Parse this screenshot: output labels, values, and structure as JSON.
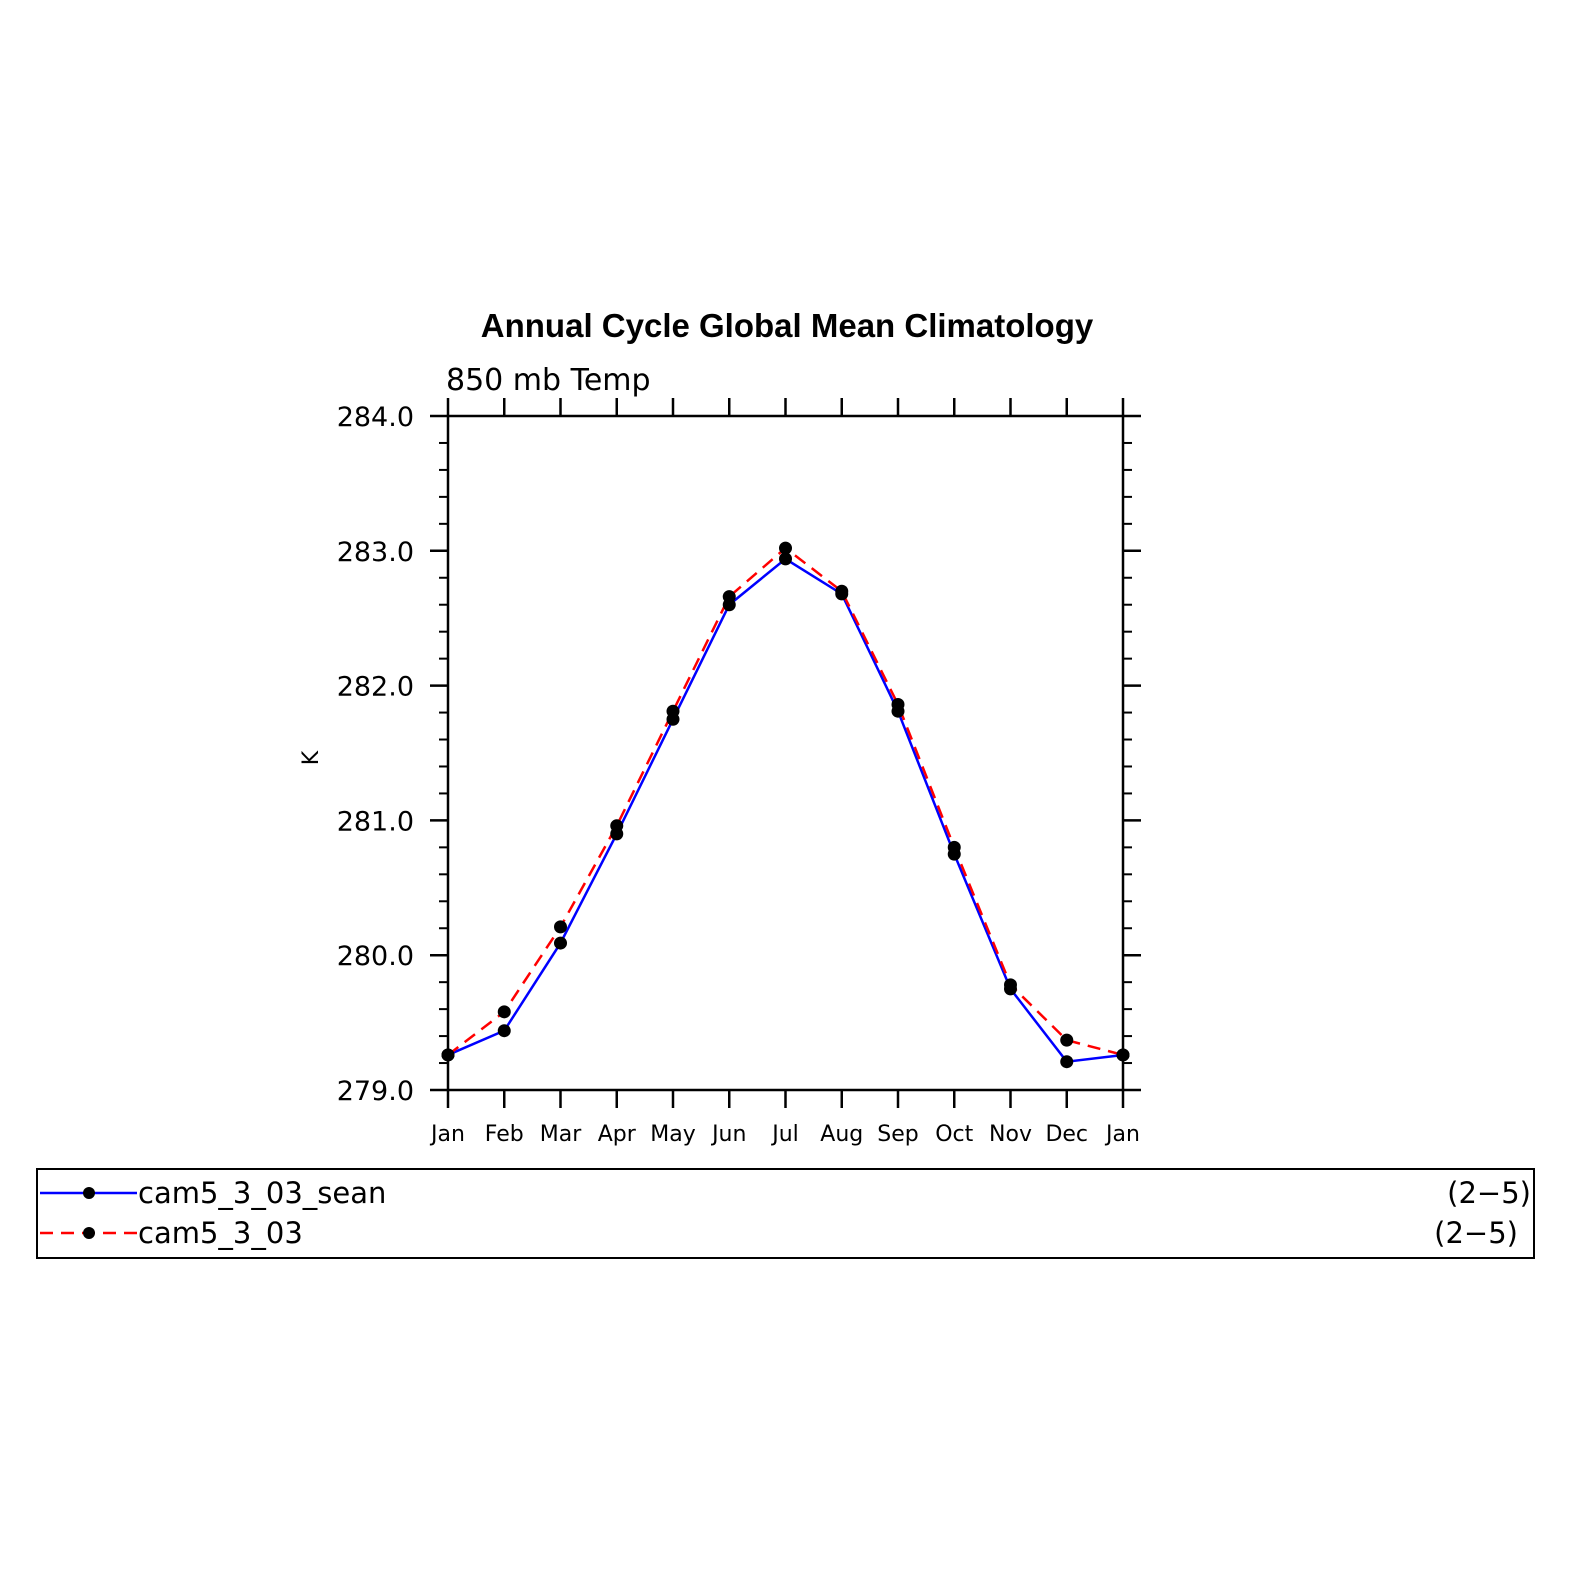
{
  "chart_data": {
    "type": "line",
    "title": "Annual Cycle Global Mean Climatology",
    "subtitle": "850 mb Temp",
    "ylabel": "K",
    "xlabel": "",
    "categories": [
      "Jan",
      "Feb",
      "Mar",
      "Apr",
      "May",
      "Jun",
      "Jul",
      "Aug",
      "Sep",
      "Oct",
      "Nov",
      "Dec",
      "Jan"
    ],
    "ylim": [
      279.0,
      284.0
    ],
    "yticks": [
      "279.0",
      "280.0",
      "281.0",
      "282.0",
      "283.0",
      "284.0"
    ],
    "grid": false,
    "series": [
      {
        "name": "cam5_3_03_sean",
        "suffix": "(2−5)",
        "color": "#0000ff",
        "dash": "solid",
        "values": [
          279.26,
          279.44,
          280.09,
          280.9,
          281.75,
          282.6,
          282.94,
          282.68,
          281.81,
          280.75,
          279.75,
          279.21,
          279.26
        ]
      },
      {
        "name": "cam5_3_03",
        "suffix": "(2−5)",
        "color": "#ff0000",
        "dash": "dashed",
        "values": [
          279.26,
          279.58,
          280.21,
          280.96,
          281.81,
          282.66,
          283.02,
          282.7,
          281.86,
          280.8,
          279.78,
          279.37,
          279.26
        ]
      }
    ]
  }
}
